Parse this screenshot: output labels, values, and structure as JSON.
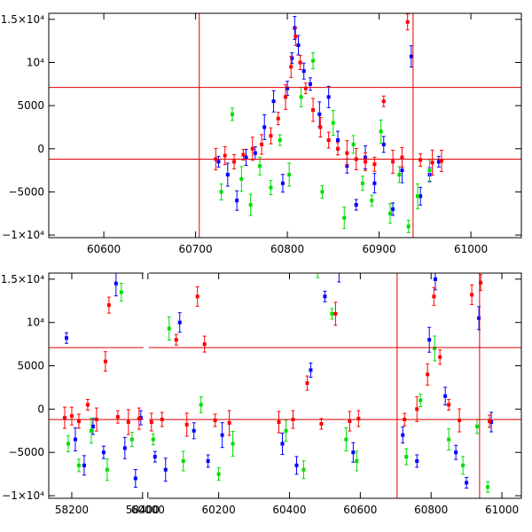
{
  "chart_data": [
    {
      "type": "scatter",
      "title": "",
      "xlabel": "",
      "ylabel": "",
      "xlim": [
        60540,
        61055
      ],
      "ylim": [
        -10300,
        15700
      ],
      "xticks": [
        60600,
        60700,
        60800,
        60900,
        61000
      ],
      "xtick_labels": [
        "60600",
        "60700",
        "60800",
        "60900",
        "61000"
      ],
      "yticks": [
        -10000,
        -5000,
        0,
        5000,
        10000,
        15000
      ],
      "ytick_labels": [
        "−1×10⁴",
        "−5000",
        "0",
        "5000",
        "10⁴",
        "1.5×10⁴"
      ],
      "hlines": [
        7100,
        -1200
      ],
      "vlines": [
        60704,
        60937
      ],
      "series_colors": [
        "#0000ff",
        "#00dd00",
        "#ff0000"
      ],
      "series": [
        {
          "color": "#0000ff",
          "points": [
            {
              "x": 60725,
              "y": -1500
            },
            {
              "x": 60735,
              "y": -3000
            },
            {
              "x": 60745,
              "y": -6000
            },
            {
              "x": 60755,
              "y": -1000
            },
            {
              "x": 60765,
              "y": -500
            },
            {
              "x": 60775,
              "y": 2500
            },
            {
              "x": 60785,
              "y": 5500
            },
            {
              "x": 60795,
              "y": -4000
            },
            {
              "x": 60800,
              "y": 7000
            },
            {
              "x": 60805,
              "y": 10500
            },
            {
              "x": 60808,
              "y": 14000
            },
            {
              "x": 60812,
              "y": 12000
            },
            {
              "x": 60818,
              "y": 9000
            },
            {
              "x": 60825,
              "y": 7500
            },
            {
              "x": 60835,
              "y": 4000
            },
            {
              "x": 60845,
              "y": 6000
            },
            {
              "x": 60855,
              "y": 1000
            },
            {
              "x": 60865,
              "y": -2000
            },
            {
              "x": 60875,
              "y": -6500
            },
            {
              "x": 60885,
              "y": -1000
            },
            {
              "x": 60895,
              "y": -4000
            },
            {
              "x": 60905,
              "y": 500
            },
            {
              "x": 60915,
              "y": -7000
            },
            {
              "x": 60925,
              "y": -2500
            },
            {
              "x": 60935,
              "y": 10700
            },
            {
              "x": 60945,
              "y": -5500
            },
            {
              "x": 60955,
              "y": -3000
            },
            {
              "x": 60965,
              "y": -1500
            }
          ]
        },
        {
          "color": "#00dd00",
          "points": [
            {
              "x": 60728,
              "y": -5000
            },
            {
              "x": 60740,
              "y": 4000
            },
            {
              "x": 60750,
              "y": -3500
            },
            {
              "x": 60760,
              "y": -6500
            },
            {
              "x": 60770,
              "y": -2000
            },
            {
              "x": 60782,
              "y": -4500
            },
            {
              "x": 60792,
              "y": 1000
            },
            {
              "x": 60802,
              "y": -3000
            },
            {
              "x": 60815,
              "y": 6000
            },
            {
              "x": 60828,
              "y": 10200
            },
            {
              "x": 60838,
              "y": -5000
            },
            {
              "x": 60850,
              "y": 3000
            },
            {
              "x": 60862,
              "y": -8000
            },
            {
              "x": 60872,
              "y": 500
            },
            {
              "x": 60882,
              "y": -4000
            },
            {
              "x": 60892,
              "y": -6000
            },
            {
              "x": 60902,
              "y": 2000
            },
            {
              "x": 60912,
              "y": -7500
            },
            {
              "x": 60922,
              "y": -3000
            },
            {
              "x": 60932,
              "y": -9000
            },
            {
              "x": 60942,
              "y": -5500
            },
            {
              "x": 60955,
              "y": -2500
            }
          ]
        },
        {
          "color": "#ff0000",
          "points": [
            {
              "x": 60722,
              "y": -1200
            },
            {
              "x": 60732,
              "y": -800
            },
            {
              "x": 60742,
              "y": -1500
            },
            {
              "x": 60752,
              "y": -700
            },
            {
              "x": 60762,
              "y": 0
            },
            {
              "x": 60772,
              "y": 500
            },
            {
              "x": 60782,
              "y": 1500
            },
            {
              "x": 60790,
              "y": 3500
            },
            {
              "x": 60798,
              "y": 6000
            },
            {
              "x": 60804,
              "y": 9500
            },
            {
              "x": 60809,
              "y": 13000
            },
            {
              "x": 60814,
              "y": 10000
            },
            {
              "x": 60820,
              "y": 7000
            },
            {
              "x": 60828,
              "y": 4500
            },
            {
              "x": 60836,
              "y": 2500
            },
            {
              "x": 60845,
              "y": 1000
            },
            {
              "x": 60855,
              "y": 0
            },
            {
              "x": 60865,
              "y": -500
            },
            {
              "x": 60875,
              "y": -1200
            },
            {
              "x": 60885,
              "y": -1500
            },
            {
              "x": 60895,
              "y": -1800
            },
            {
              "x": 60905,
              "y": 5500
            },
            {
              "x": 60915,
              "y": -1500
            },
            {
              "x": 60925,
              "y": -1000
            },
            {
              "x": 60931,
              "y": 14700
            },
            {
              "x": 60945,
              "y": -1300
            },
            {
              "x": 60958,
              "y": -1600
            },
            {
              "x": 60968,
              "y": -1400
            }
          ]
        }
      ]
    },
    {
      "type": "scatter",
      "title": "",
      "xlabel": "",
      "ylabel": "",
      "xlim": [
        58135,
        61055
      ],
      "ylim": [
        -10300,
        15700
      ],
      "x_break": {
        "from": 58410,
        "to": 59995
      },
      "xticks": [
        58200,
        58400,
        60000,
        60200,
        60400,
        60600,
        60800,
        61000
      ],
      "xtick_labels": [
        "58200",
        "58400",
        "60000",
        "60200",
        "60400",
        "60600",
        "60800",
        "61000"
      ],
      "yticks": [
        -10000,
        -5000,
        0,
        5000,
        10000,
        15000
      ],
      "ytick_labels": [
        "−1×10⁴",
        "−5000",
        "0",
        "5000",
        "10⁴",
        "1.5×10⁴"
      ],
      "hlines": [
        7100,
        -1200
      ],
      "vlines": [
        60704,
        60937
      ],
      "series_colors": [
        "#0000ff",
        "#00dd00",
        "#ff0000"
      ],
      "series": [
        {
          "color": "#0000ff",
          "points": [
            {
              "x": 58185,
              "y": 8200
            },
            {
              "x": 58210,
              "y": -3500
            },
            {
              "x": 58235,
              "y": -6500
            },
            {
              "x": 58260,
              "y": -2000
            },
            {
              "x": 58290,
              "y": -5000
            },
            {
              "x": 58325,
              "y": 14500
            },
            {
              "x": 58350,
              "y": -4500
            },
            {
              "x": 58380,
              "y": -8000
            },
            {
              "x": 58395,
              "y": -1000
            },
            {
              "x": 60020,
              "y": -5500
            },
            {
              "x": 60050,
              "y": -7000
            },
            {
              "x": 60090,
              "y": 10000
            },
            {
              "x": 60130,
              "y": -2500
            },
            {
              "x": 60170,
              "y": -6000
            },
            {
              "x": 60210,
              "y": -3000
            },
            {
              "x": 60380,
              "y": -4000
            },
            {
              "x": 60420,
              "y": -6500
            },
            {
              "x": 60460,
              "y": 4500
            },
            {
              "x": 60500,
              "y": 13000
            },
            {
              "x": 60540,
              "y": 16000
            },
            {
              "x": 60580,
              "y": -5000
            },
            {
              "x": 60720,
              "y": -3000
            },
            {
              "x": 60760,
              "y": -6000
            },
            {
              "x": 60795,
              "y": 8000
            },
            {
              "x": 60812,
              "y": 15000
            },
            {
              "x": 60840,
              "y": 1500
            },
            {
              "x": 60870,
              "y": -5000
            },
            {
              "x": 60900,
              "y": -8500
            },
            {
              "x": 60935,
              "y": 10500
            },
            {
              "x": 60970,
              "y": -1500
            }
          ]
        },
        {
          "color": "#00dd00",
          "points": [
            {
              "x": 58190,
              "y": -4000
            },
            {
              "x": 58220,
              "y": -6500
            },
            {
              "x": 58255,
              "y": -2500
            },
            {
              "x": 58300,
              "y": -7000
            },
            {
              "x": 58340,
              "y": 13500
            },
            {
              "x": 58370,
              "y": -3500
            },
            {
              "x": 60015,
              "y": -3500
            },
            {
              "x": 60060,
              "y": 9300
            },
            {
              "x": 60100,
              "y": -6000
            },
            {
              "x": 60150,
              "y": 500
            },
            {
              "x": 60200,
              "y": -7500
            },
            {
              "x": 60240,
              "y": -4000
            },
            {
              "x": 60390,
              "y": -2500
            },
            {
              "x": 60440,
              "y": -7000
            },
            {
              "x": 60480,
              "y": 16000
            },
            {
              "x": 60520,
              "y": 11000
            },
            {
              "x": 60560,
              "y": -3500
            },
            {
              "x": 60590,
              "y": -6000
            },
            {
              "x": 60730,
              "y": -5500
            },
            {
              "x": 60770,
              "y": 1000
            },
            {
              "x": 60810,
              "y": 7000
            },
            {
              "x": 60850,
              "y": -3500
            },
            {
              "x": 60890,
              "y": -6500
            },
            {
              "x": 60930,
              "y": -2000
            },
            {
              "x": 60960,
              "y": -9000
            }
          ]
        },
        {
          "color": "#ff0000",
          "points": [
            {
              "x": 58180,
              "y": -1000
            },
            {
              "x": 58200,
              "y": -800
            },
            {
              "x": 58220,
              "y": -1400
            },
            {
              "x": 58245,
              "y": 500
            },
            {
              "x": 58270,
              "y": -1200
            },
            {
              "x": 58295,
              "y": 5500
            },
            {
              "x": 58305,
              "y": 12000
            },
            {
              "x": 58330,
              "y": -900
            },
            {
              "x": 58360,
              "y": -1500
            },
            {
              "x": 58390,
              "y": -1100
            },
            {
              "x": 60010,
              "y": -1500
            },
            {
              "x": 60040,
              "y": -1200
            },
            {
              "x": 60080,
              "y": 8000
            },
            {
              "x": 60110,
              "y": -1800
            },
            {
              "x": 60140,
              "y": 13000
            },
            {
              "x": 60160,
              "y": 7500
            },
            {
              "x": 60190,
              "y": -1300
            },
            {
              "x": 60230,
              "y": -1600
            },
            {
              "x": 60370,
              "y": -1500
            },
            {
              "x": 60410,
              "y": -1200
            },
            {
              "x": 60450,
              "y": 3000
            },
            {
              "x": 60490,
              "y": -1700
            },
            {
              "x": 60530,
              "y": 11000
            },
            {
              "x": 60570,
              "y": -1400
            },
            {
              "x": 60595,
              "y": -1100
            },
            {
              "x": 60725,
              "y": -1200
            },
            {
              "x": 60760,
              "y": 0
            },
            {
              "x": 60790,
              "y": 4000
            },
            {
              "x": 60808,
              "y": 13000
            },
            {
              "x": 60825,
              "y": 6000
            },
            {
              "x": 60850,
              "y": 500
            },
            {
              "x": 60880,
              "y": -1300
            },
            {
              "x": 60915,
              "y": 13200
            },
            {
              "x": 60940,
              "y": 14600
            },
            {
              "x": 60965,
              "y": -1400
            }
          ]
        }
      ]
    }
  ]
}
